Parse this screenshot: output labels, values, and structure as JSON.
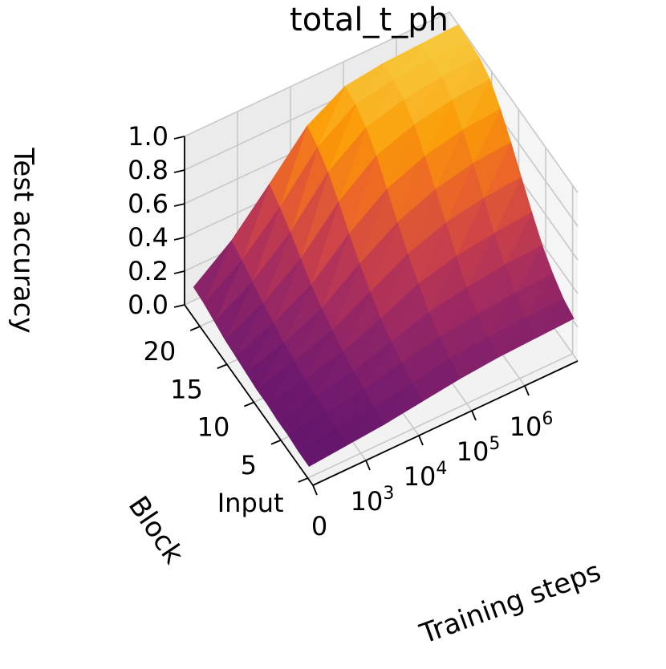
{
  "chart_data": {
    "type": "surface",
    "title": "total_t_ph",
    "zlabel": "Test accuracy",
    "ylabel": "Block",
    "xlabel": "Training steps",
    "zlim": [
      0,
      1
    ],
    "z_ticks": [
      "0.0",
      "0.2",
      "0.4",
      "0.6",
      "0.8",
      "1.0"
    ],
    "block_ticks": [
      "Input",
      "5",
      "10",
      "15",
      "20"
    ],
    "step_ticks": [
      {
        "base": "0",
        "exp": ""
      },
      {
        "base": "10",
        "exp": "3"
      },
      {
        "base": "10",
        "exp": "4"
      },
      {
        "base": "10",
        "exp": "5"
      },
      {
        "base": "10",
        "exp": "6"
      }
    ],
    "colormap": "inferno",
    "colors": [
      "#4a0c6b",
      "#7a1d6d",
      "#a52c60",
      "#cf4446",
      "#ed6925",
      "#fb9b06",
      "#f7c83b"
    ],
    "blocks": [
      0,
      2,
      4,
      6,
      8,
      10,
      12,
      14,
      16,
      18,
      20,
      22
    ],
    "steps": [
      "0",
      "1e3",
      "3e3",
      "1e4",
      "3e4",
      "1e5",
      "3e5",
      "1e6"
    ],
    "z": [
      [
        0.08,
        0.1,
        0.12,
        0.15,
        0.18,
        0.2,
        0.21,
        0.22
      ],
      [
        0.08,
        0.11,
        0.13,
        0.17,
        0.21,
        0.23,
        0.24,
        0.25
      ],
      [
        0.09,
        0.12,
        0.15,
        0.2,
        0.25,
        0.28,
        0.3,
        0.31
      ],
      [
        0.09,
        0.13,
        0.17,
        0.24,
        0.31,
        0.35,
        0.38,
        0.39
      ],
      [
        0.1,
        0.14,
        0.2,
        0.29,
        0.39,
        0.45,
        0.48,
        0.5
      ],
      [
        0.1,
        0.16,
        0.24,
        0.36,
        0.48,
        0.56,
        0.6,
        0.62
      ],
      [
        0.11,
        0.18,
        0.28,
        0.44,
        0.58,
        0.67,
        0.72,
        0.74
      ],
      [
        0.12,
        0.21,
        0.33,
        0.53,
        0.69,
        0.78,
        0.83,
        0.85
      ],
      [
        0.13,
        0.24,
        0.4,
        0.63,
        0.8,
        0.88,
        0.92,
        0.94
      ],
      [
        0.15,
        0.28,
        0.47,
        0.72,
        0.88,
        0.94,
        0.97,
        0.98
      ],
      [
        0.17,
        0.32,
        0.53,
        0.78,
        0.93,
        0.97,
        0.99,
        0.99
      ],
      [
        0.18,
        0.35,
        0.58,
        0.82,
        0.95,
        0.98,
        0.99,
        1.0
      ]
    ]
  }
}
